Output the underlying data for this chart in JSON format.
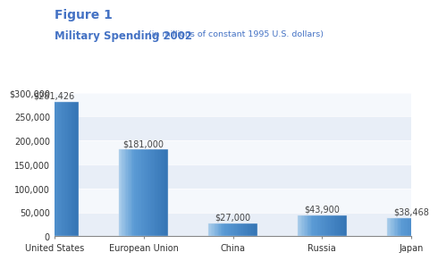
{
  "title_main": "Figure 1",
  "title_sub": "Military Spending 2002",
  "title_sub_small": " (in millions of constant 1995 U.S. dollars)",
  "categories": [
    "United States",
    "European Union",
    "China",
    "Russia",
    "Japan"
  ],
  "values": [
    281426,
    181000,
    27000,
    43900,
    38468
  ],
  "labels": [
    "$281,426",
    "$181,000",
    "$27,000",
    "$43,900",
    "$38,468"
  ],
  "bar_color_main": "#5B9BD5",
  "bar_color_left": "#A8CCEA",
  "bar_color_right": "#3575B5",
  "title_color": "#4472C4",
  "background_color": "#FFFFFF",
  "band_color_light": "#E8EEF7",
  "band_color_white": "#F5F8FC",
  "ylim": [
    0,
    310000
  ],
  "yticks": [
    0,
    50000,
    100000,
    150000,
    200000,
    250000,
    300000
  ],
  "ytick_labels": [
    "0",
    "50,000",
    "100,000",
    "150,000",
    "200,000",
    "250,000",
    "$300,000"
  ],
  "title_fontsize": 10,
  "subtitle_fontsize": 8.5,
  "subtitle_small_fontsize": 6.8,
  "label_fontsize": 7,
  "tick_fontsize": 7
}
